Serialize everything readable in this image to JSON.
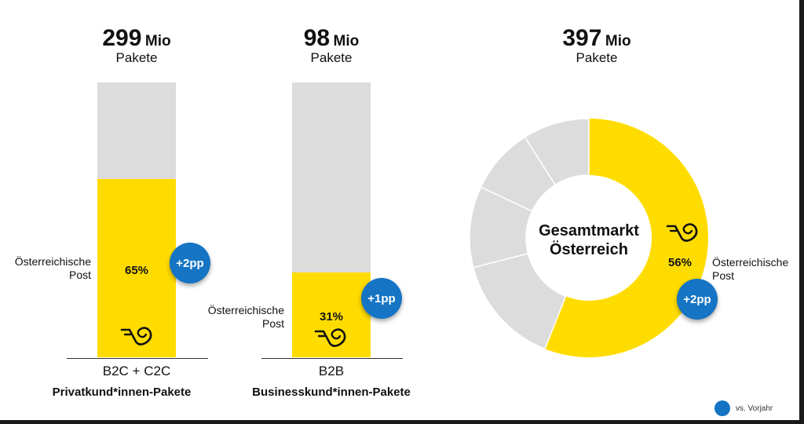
{
  "chart_data": [
    {
      "type": "bar",
      "categories": [
        "B2C + C2C"
      ],
      "category_subtitle": "Privatkund*innen-Pakete",
      "total_value": "299",
      "total_unit": "Mio",
      "total_label": "Pakete",
      "series": [
        {
          "name": "Österreichische Post",
          "values": [
            65
          ]
        }
      ],
      "value_label": "65%",
      "change_badge": "+2pp",
      "ylim": [
        0,
        100
      ]
    },
    {
      "type": "bar",
      "categories": [
        "B2B"
      ],
      "category_subtitle": "Businesskund*innen-Pakete",
      "total_value": "98",
      "total_unit": "Mio",
      "total_label": "Pakete",
      "series": [
        {
          "name": "Österreichische Post",
          "values": [
            31
          ]
        }
      ],
      "value_label": "31%",
      "change_badge": "+1pp",
      "ylim": [
        0,
        100
      ]
    },
    {
      "type": "pie",
      "title": "Gesamtmarkt Österreich",
      "total_value": "397",
      "total_unit": "Mio",
      "total_label": "Pakete",
      "slices": [
        {
          "name": "Österreichische Post",
          "value": 56
        },
        {
          "name": "",
          "value": 15
        },
        {
          "name": "",
          "value": 11
        },
        {
          "name": "",
          "value": 9
        },
        {
          "name": "",
          "value": 9
        }
      ],
      "value_label": "56%",
      "change_badge": "+2pp"
    }
  ],
  "labels": {
    "post_line1": "Österreichische",
    "post_line2": "Post",
    "center_line1": "Gesamtmarkt",
    "center_line2": "Österreich"
  },
  "legend": {
    "label": "vs. Vorjahr"
  },
  "colors": {
    "post": "#ffdc00",
    "other": "#dcdcdc",
    "badge": "#1574c4"
  },
  "icons": {
    "post_logo": "post-horn-icon",
    "legend_marker": "blue-dot"
  }
}
